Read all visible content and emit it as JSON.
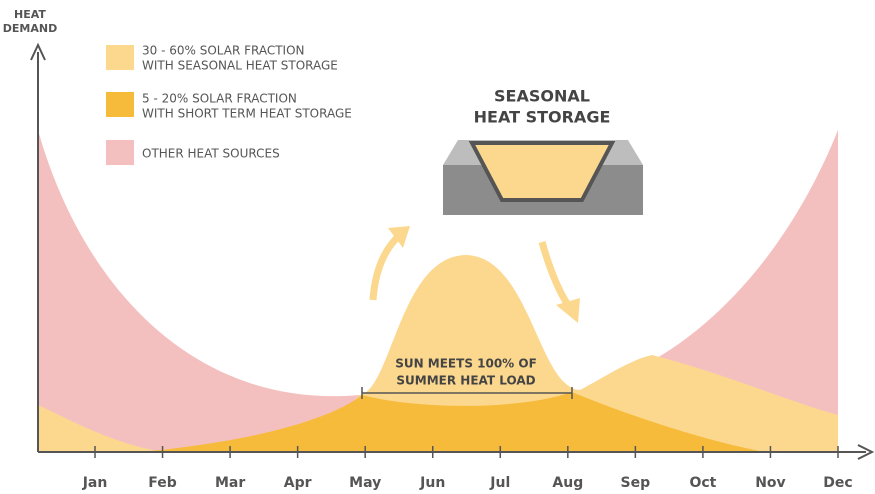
{
  "y_axis_label": [
    "HEAT",
    "DEMAND"
  ],
  "legend": [
    {
      "lines": [
        "30 - 60% SOLAR FRACTION",
        "WITH SEASONAL HEAT STORAGE"
      ]
    },
    {
      "lines": [
        "5 - 20% SOLAR FRACTION",
        "WITH SHORT TERM HEAT STORAGE"
      ]
    },
    {
      "lines": [
        "OTHER HEAT SOURCES"
      ]
    }
  ],
  "storage_title": [
    "SEASONAL",
    "HEAT STORAGE"
  ],
  "summer_label": [
    "SUN MEETS 100% OF",
    "SUMMER HEAT LOAD"
  ],
  "months": [
    "Jan",
    "Feb",
    "Mar",
    "Apr",
    "May",
    "Jun",
    "Jul",
    "Aug",
    "Sep",
    "Oct",
    "Nov",
    "Dec"
  ]
}
